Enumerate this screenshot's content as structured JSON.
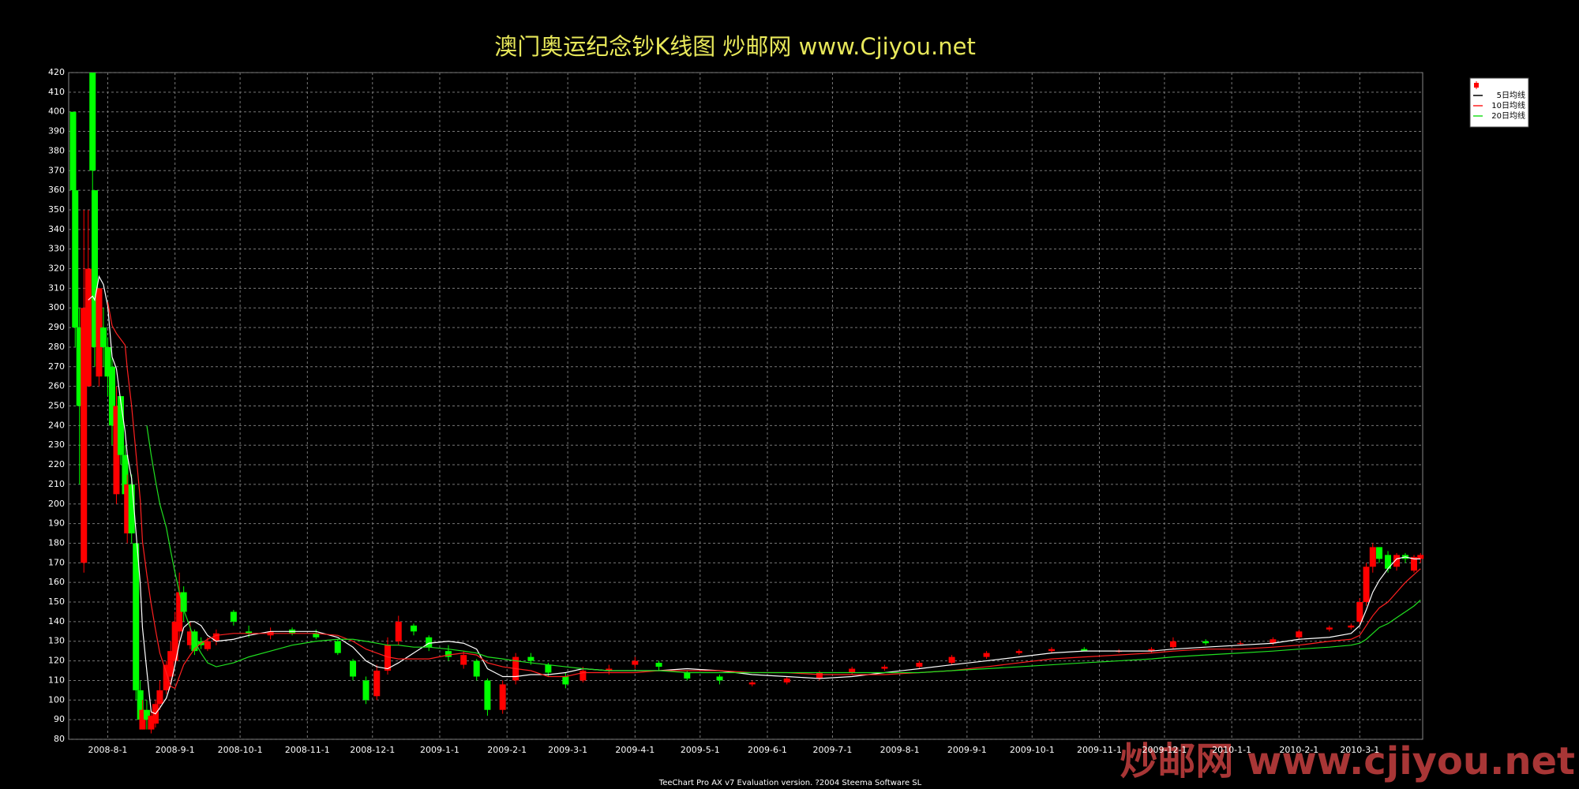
{
  "chart_data": {
    "type": "candlestick",
    "title": "澳门奥运纪念钞K线图  炒邮网 www.Cjiyou.net",
    "x": [
      "2008-7-16",
      "2008-7-17",
      "2008-7-19",
      "2008-7-21",
      "2008-7-23",
      "2008-7-25",
      "2008-7-26",
      "2008-7-28",
      "2008-7-30",
      "2008-8-1",
      "2008-8-3",
      "2008-8-5",
      "2008-8-7",
      "2008-8-9",
      "2008-8-10",
      "2008-8-12",
      "2008-8-14",
      "2008-8-16",
      "2008-8-17",
      "2008-8-19",
      "2008-8-21",
      "2008-8-23",
      "2008-8-25",
      "2008-8-28",
      "2008-8-30",
      "2008-9-1",
      "2008-9-3",
      "2008-9-5",
      "2008-9-8",
      "2008-9-10",
      "2008-9-13",
      "2008-9-16",
      "2008-9-20",
      "2008-9-28",
      "2008-10-5",
      "2008-10-15",
      "2008-10-25",
      "2008-11-5",
      "2008-11-15",
      "2008-11-22",
      "2008-11-28",
      "2008-12-3",
      "2008-12-8",
      "2008-12-13",
      "2008-12-20",
      "2008-12-27",
      "2009-1-5",
      "2009-1-12",
      "2009-1-18",
      "2009-1-23",
      "2009-1-30",
      "2009-2-5",
      "2009-2-12",
      "2009-2-20",
      "2009-2-28",
      "2009-3-8",
      "2009-3-20",
      "2009-4-1",
      "2009-4-12",
      "2009-4-25",
      "2009-5-10",
      "2009-5-25",
      "2009-6-10",
      "2009-6-25",
      "2009-7-10",
      "2009-7-25",
      "2009-8-10",
      "2009-8-25",
      "2009-9-10",
      "2009-9-25",
      "2009-10-10",
      "2009-10-25",
      "2009-11-10",
      "2009-11-25",
      "2009-12-5",
      "2009-12-20",
      "2010-1-5",
      "2010-1-20",
      "2010-2-1",
      "2010-2-15",
      "2010-2-25",
      "2010-3-1",
      "2010-3-4",
      "2010-3-7",
      "2010-3-10",
      "2010-3-14",
      "2010-3-18",
      "2010-3-22",
      "2010-3-26",
      "2010-3-29"
    ],
    "open": [
      400,
      360,
      290,
      170,
      260,
      420,
      360,
      265,
      290,
      280,
      270,
      205,
      255,
      225,
      185,
      210,
      180,
      105,
      85,
      95,
      85,
      88,
      98,
      105,
      112,
      120,
      135,
      155,
      128,
      135,
      130,
      126,
      130,
      145,
      135,
      133,
      136,
      134,
      130,
      120,
      110,
      102,
      115,
      130,
      138,
      132,
      125,
      118,
      120,
      110,
      95,
      110,
      122,
      118,
      112,
      110,
      115,
      118,
      119,
      114,
      112,
      108,
      109,
      111,
      114,
      116,
      117,
      119,
      122,
      124,
      125,
      126,
      125,
      125,
      127,
      130,
      129,
      129,
      132,
      136,
      137,
      140,
      150,
      168,
      178,
      174,
      168,
      174,
      166,
      172
    ],
    "high": [
      400,
      360,
      300,
      350,
      350,
      420,
      360,
      310,
      300,
      285,
      275,
      260,
      255,
      230,
      215,
      215,
      180,
      110,
      100,
      100,
      95,
      100,
      110,
      120,
      130,
      145,
      165,
      158,
      140,
      136,
      132,
      132,
      136,
      146,
      138,
      137,
      137,
      136,
      131,
      121,
      112,
      118,
      132,
      143,
      139,
      133,
      128,
      125,
      121,
      111,
      110,
      124,
      124,
      119,
      114,
      117,
      118,
      122,
      120,
      115,
      113,
      110,
      112,
      115,
      117,
      118,
      120,
      123,
      125,
      126,
      127,
      127,
      126,
      127,
      132,
      131,
      130,
      132,
      136,
      138,
      139,
      152,
      170,
      180,
      178,
      176,
      175,
      175,
      174,
      175
    ],
    "low": [
      355,
      280,
      210,
      165,
      260,
      360,
      270,
      260,
      270,
      255,
      230,
      200,
      220,
      200,
      180,
      180,
      100,
      85,
      85,
      85,
      83,
      86,
      95,
      103,
      108,
      118,
      130,
      140,
      126,
      123,
      126,
      125,
      128,
      138,
      132,
      131,
      133,
      131,
      123,
      110,
      98,
      100,
      113,
      128,
      133,
      125,
      120,
      116,
      110,
      92,
      93,
      108,
      118,
      112,
      106,
      109,
      113,
      116,
      115,
      110,
      108,
      107,
      108,
      110,
      113,
      115,
      116,
      118,
      121,
      123,
      124,
      125,
      124,
      124,
      126,
      128,
      128,
      128,
      131,
      135,
      136,
      138,
      148,
      165,
      170,
      165,
      166,
      170,
      165,
      170
    ],
    "close": [
      360,
      290,
      250,
      300,
      320,
      370,
      280,
      310,
      280,
      265,
      240,
      250,
      225,
      205,
      210,
      185,
      105,
      90,
      95,
      90,
      92,
      98,
      105,
      118,
      125,
      140,
      155,
      145,
      135,
      125,
      128,
      130,
      134,
      140,
      134,
      135,
      134,
      132,
      124,
      112,
      100,
      115,
      128,
      140,
      135,
      127,
      122,
      123,
      112,
      95,
      108,
      122,
      120,
      114,
      108,
      115,
      116,
      120,
      117,
      111,
      110,
      109,
      111,
      114,
      116,
      117,
      119,
      122,
      124,
      125,
      126,
      125,
      125,
      126,
      130,
      129,
      129,
      131,
      135,
      137,
      138,
      150,
      168,
      178,
      172,
      167,
      174,
      172,
      173,
      174
    ],
    "up_color": "#ff0000",
    "down_color": "#00ff00",
    "series": [
      {
        "name": "5日均线",
        "color": "#ffffff",
        "values": [
          null,
          null,
          null,
          null,
          304,
          306,
          304,
          316,
          312,
          301,
          275,
          269,
          252,
          237,
          225,
          213,
          186,
          159,
          137,
          115,
          94,
          93,
          96,
          101,
          108,
          118,
          129,
          137,
          140,
          140,
          138,
          133,
          130,
          131,
          133,
          135,
          135,
          135,
          132,
          127,
          120,
          117,
          116,
          119,
          124,
          129,
          130,
          129,
          126,
          116,
          112,
          112,
          113,
          113,
          114,
          116,
          115,
          115,
          115,
          116,
          115,
          113,
          112,
          111,
          112,
          114,
          116,
          118,
          120,
          122,
          124,
          125,
          125,
          125,
          126,
          127,
          128,
          129,
          131,
          132,
          134,
          138,
          146,
          155,
          161,
          167,
          172,
          173,
          172,
          172
        ]
      },
      {
        "name": "10日均线",
        "color": "#ff2020",
        "values": [
          null,
          null,
          null,
          null,
          null,
          null,
          null,
          null,
          null,
          303,
          291,
          287,
          284,
          281,
          269,
          250,
          226,
          202,
          181,
          164,
          149,
          136,
          124,
          114,
          107,
          106,
          112,
          118,
          123,
          126,
          129,
          131,
          133,
          134,
          134,
          134,
          134,
          134,
          133,
          130,
          126,
          124,
          122,
          121,
          121,
          121,
          123,
          124,
          123,
          119,
          117,
          116,
          115,
          112,
          112,
          114,
          114,
          114,
          115,
          115,
          115,
          114,
          114,
          113,
          113,
          113,
          114,
          115,
          117,
          119,
          121,
          122,
          123,
          124,
          125,
          126,
          126,
          127,
          128,
          130,
          131,
          133,
          138,
          143,
          147,
          150,
          155,
          160,
          164,
          167
        ]
      },
      {
        "name": "20日均线",
        "color": "#20e020",
        "values": [
          null,
          null,
          null,
          null,
          null,
          null,
          null,
          null,
          null,
          null,
          null,
          null,
          null,
          null,
          null,
          null,
          null,
          null,
          null,
          240,
          225,
          212,
          200,
          188,
          176,
          165,
          155,
          146,
          137,
          130,
          124,
          119,
          117,
          119,
          122,
          125,
          128,
          130,
          131,
          131,
          130,
          129,
          128,
          128,
          127,
          127,
          126,
          125,
          124,
          122,
          121,
          120,
          119,
          118,
          117,
          116,
          115,
          115,
          115,
          114,
          114,
          114,
          114,
          114,
          114,
          114,
          114,
          115,
          116,
          117,
          118,
          119,
          120,
          121,
          122,
          123,
          124,
          125,
          126,
          127,
          128,
          129,
          131,
          134,
          137,
          139,
          142,
          145,
          148,
          151
        ]
      }
    ],
    "xlim": [
      "2008-7-14",
      "2010-3-30"
    ],
    "xticks": [
      "2008-8-1",
      "2008-9-1",
      "2008-10-1",
      "2008-11-1",
      "2008-12-1",
      "2009-1-1",
      "2009-2-1",
      "2009-3-1",
      "2009-4-1",
      "2009-5-1",
      "2009-6-1",
      "2009-7-1",
      "2009-8-1",
      "2009-9-1",
      "2009-10-1",
      "2009-11-1",
      "2009-12-1",
      "2010-1-1",
      "2010-2-1",
      "2010-3-1"
    ],
    "ylim": [
      80,
      420
    ],
    "yticks": [
      80,
      90,
      100,
      110,
      120,
      130,
      140,
      150,
      160,
      170,
      180,
      190,
      200,
      210,
      220,
      230,
      240,
      250,
      260,
      270,
      280,
      290,
      300,
      310,
      320,
      330,
      340,
      350,
      360,
      370,
      380,
      390,
      400,
      410,
      420
    ],
    "grid": true,
    "legend": "top-right"
  },
  "footer": "TeeChart Pro AX v7 Evaluation version. ?2004 Steema Software SL",
  "watermark": "炒邮网 www.cjiyou.net"
}
